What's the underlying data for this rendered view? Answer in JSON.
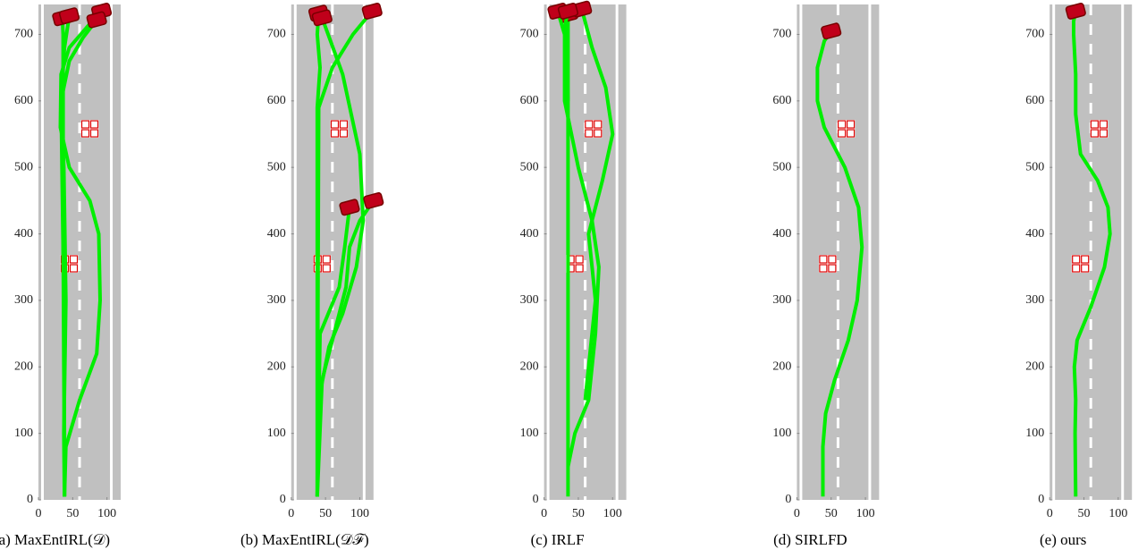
{
  "chart_data": [
    {
      "type": "line",
      "caption": "(a) MaxEntIRL(𝒟)",
      "xlim": [
        0,
        120
      ],
      "ylim": [
        0,
        745
      ],
      "xticks": [
        0,
        50,
        100
      ],
      "yticks": [
        0,
        100,
        200,
        300,
        400,
        500,
        600,
        700
      ],
      "series": [
        {
          "color": "#00ee00",
          "x": [
            38,
            38,
            37,
            36,
            36,
            36,
            35
          ],
          "y": [
            5,
            100,
            200,
            400,
            600,
            700,
            725
          ]
        },
        {
          "color": "#00ee00",
          "x": [
            38,
            40,
            60,
            85,
            90,
            88,
            75,
            45,
            32,
            33,
            45,
            70,
            92
          ],
          "y": [
            5,
            80,
            150,
            220,
            300,
            400,
            450,
            500,
            560,
            640,
            680,
            710,
            735
          ]
        },
        {
          "color": "#00ee00",
          "x": [
            38,
            37,
            40,
            37,
            33,
            45,
            65,
            85
          ],
          "y": [
            5,
            100,
            300,
            500,
            600,
            660,
            695,
            722
          ]
        },
        {
          "color": "#00ee00",
          "x": [
            38,
            37,
            33,
            38,
            45
          ],
          "y": [
            5,
            300,
            600,
            680,
            728
          ]
        }
      ],
      "obstacles": {
        "x": [
          75,
          45
        ],
        "y": [
          558,
          355
        ]
      }
    },
    {
      "type": "line",
      "caption": "(b) MaxEntIRL(𝒟ℱ)",
      "xlim": [
        0,
        120
      ],
      "ylim": [
        0,
        745
      ],
      "xticks": [
        0,
        50,
        100
      ],
      "yticks": [
        0,
        100,
        200,
        300,
        400,
        500,
        600,
        700
      ],
      "series": [
        {
          "color": "#00ee00",
          "x": [
            38,
            38,
            38,
            38,
            42,
            38,
            40
          ],
          "y": [
            5,
            200,
            400,
            590,
            650,
            700,
            732
          ]
        },
        {
          "color": "#00ee00",
          "x": [
            38,
            40,
            55,
            75,
            95,
            105,
            100,
            75,
            45
          ],
          "y": [
            5,
            150,
            230,
            280,
            350,
            420,
            520,
            640,
            725
          ]
        },
        {
          "color": "#00ee00",
          "x": [
            38,
            45,
            65,
            80,
            85,
            100,
            120
          ],
          "y": [
            5,
            180,
            260,
            320,
            380,
            420,
            450
          ]
        },
        {
          "color": "#00ee00",
          "x": [
            38,
            42,
            70,
            78,
            85
          ],
          "y": [
            5,
            250,
            320,
            380,
            440
          ]
        },
        {
          "color": "#00ee00",
          "x": [
            38,
            40,
            60,
            90,
            118
          ],
          "y": [
            5,
            590,
            650,
            700,
            735
          ]
        }
      ],
      "obstacles": {
        "x": [
          70,
          45
        ],
        "y": [
          558,
          355
        ]
      }
    },
    {
      "type": "line",
      "caption": "(c) IRLF",
      "xlim": [
        0,
        120
      ],
      "ylim": [
        0,
        745
      ],
      "xticks": [
        0,
        50,
        100
      ],
      "yticks": [
        0,
        100,
        200,
        300,
        400,
        500,
        600,
        700
      ],
      "series": [
        {
          "color": "#00ee00",
          "x": [
            35,
            35,
            35,
            35,
            35
          ],
          "y": [
            5,
            200,
            400,
            600,
            730
          ]
        },
        {
          "color": "#00ee00",
          "x": [
            35,
            45,
            65,
            75,
            80,
            70,
            50,
            30,
            30,
            20
          ],
          "y": [
            50,
            100,
            150,
            250,
            350,
            420,
            500,
            600,
            700,
            735
          ]
        },
        {
          "color": "#00ee00",
          "x": [
            60,
            75,
            70,
            65,
            85,
            100,
            90,
            70,
            55
          ],
          "y": [
            150,
            300,
            350,
            400,
            480,
            550,
            620,
            680,
            738
          ]
        },
        {
          "color": "#00ee00",
          "x": [
            35,
            33,
            30,
            35
          ],
          "y": [
            600,
            680,
            710,
            735
          ]
        }
      ],
      "obstacles": {
        "x": [
          72,
          45
        ],
        "y": [
          558,
          355
        ]
      }
    },
    {
      "type": "line",
      "caption": "(d) SIRLFD",
      "xlim": [
        0,
        120
      ],
      "ylim": [
        0,
        745
      ],
      "xticks": [
        0,
        50,
        100
      ],
      "yticks": [
        0,
        100,
        200,
        300,
        400,
        500,
        600,
        700
      ],
      "series": [
        {
          "color": "#00ee00",
          "x": [
            38,
            38,
            42,
            55,
            75,
            88,
            95,
            90,
            70,
            40,
            30,
            30,
            40,
            50
          ],
          "y": [
            5,
            80,
            130,
            180,
            240,
            300,
            380,
            440,
            500,
            560,
            600,
            650,
            690,
            705
          ]
        }
      ],
      "obstacles": {
        "x": [
          72,
          45
        ],
        "y": [
          558,
          355
        ]
      }
    },
    {
      "type": "line",
      "caption": "(e) ours",
      "xlim": [
        0,
        120
      ],
      "ylim": [
        0,
        745
      ],
      "xticks": [
        0,
        50,
        100
      ],
      "yticks": [
        0,
        100,
        200,
        300,
        400,
        500,
        600,
        700
      ],
      "series": [
        {
          "color": "#00ee00",
          "x": [
            38,
            37,
            38,
            36,
            40,
            60,
            80,
            88,
            85,
            70,
            45,
            38,
            38,
            35,
            35,
            38
          ],
          "y": [
            5,
            100,
            150,
            200,
            240,
            290,
            350,
            400,
            440,
            480,
            520,
            580,
            640,
            700,
            720,
            735
          ]
        }
      ],
      "obstacles": {
        "x": [
          72,
          45
        ],
        "y": [
          558,
          355
        ]
      }
    }
  ]
}
